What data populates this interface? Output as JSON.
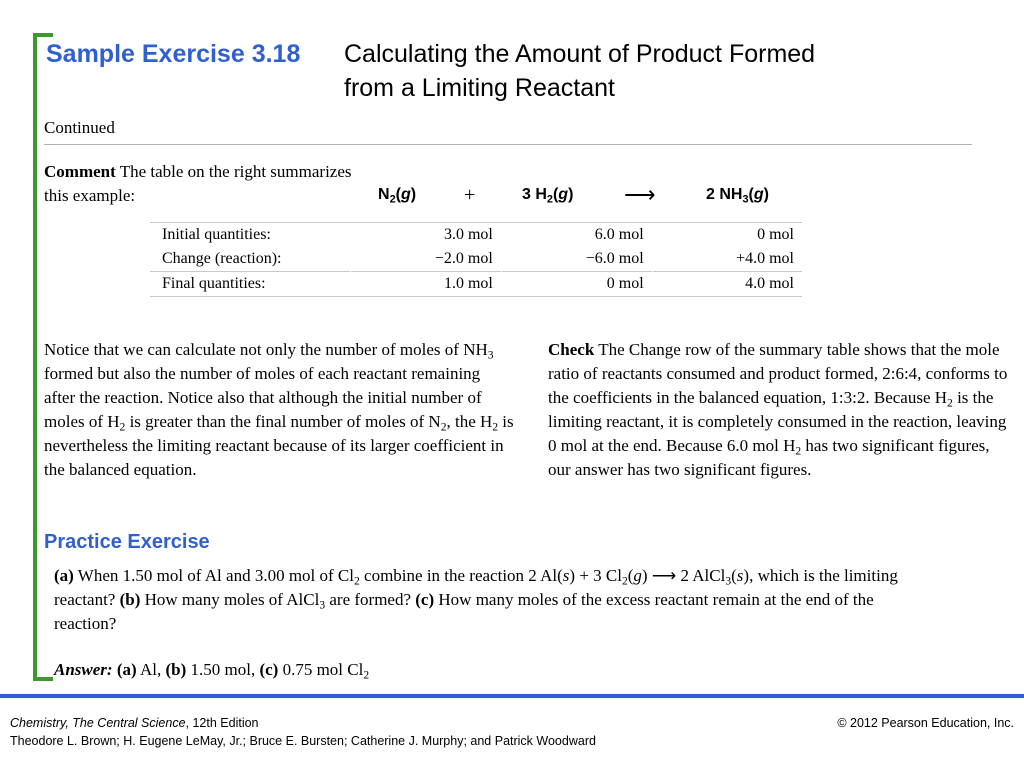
{
  "title": {
    "exercise": "Sample Exercise 3.18",
    "line1": "Calculating the Amount of Product Formed",
    "line2": "from a Limiting Reactant"
  },
  "continued": "Continued",
  "comment": {
    "label": "Comment",
    "text_line1": " The table on the right summarizes",
    "text_line2": "this example:"
  },
  "equation": {
    "reactant1_coef": "",
    "reactant1": "N",
    "reactant1_sub": "2",
    "reactant1_state": "g",
    "plus": "+",
    "reactant2_coef": "3 H",
    "reactant2_sub": "2",
    "reactant2_state": "g",
    "arrow": "⟶",
    "product_coef": "2 NH",
    "product_sub": "3",
    "product_state": "g"
  },
  "table": {
    "rows": [
      {
        "label": "Initial quantities:",
        "n2": "3.0 mol",
        "h2": "6.0 mol",
        "nh3": "0 mol"
      },
      {
        "label": "Change (reaction):",
        "n2": "−2.0 mol",
        "h2": "−6.0 mol",
        "nh3": "+4.0 mol"
      },
      {
        "label": "Final quantities:",
        "n2": "1.0 mol",
        "h2": "0 mol",
        "nh3": "4.0 mol"
      }
    ]
  },
  "notice": {
    "t1": "Notice that we can calculate not only the number of moles of NH",
    "s1": "3",
    "t2": " formed but also the number of moles of each reactant remaining after the reaction. Notice also that although the initial number of moles of H",
    "s2": "2",
    "t3": " is greater than the final number of moles of N",
    "s3": "2",
    "t4": ", the H",
    "s4": "2",
    "t5": " is nevertheless the limiting reactant because of its larger coefficient in the balanced equation."
  },
  "check": {
    "label": "Check",
    "t1": " The Change row of the summary table shows that the mole ratio of reactants consumed and product formed, 2:6:4, conforms to the coefficients in the balanced equation, 1:3:2. Because H",
    "s1": "2",
    "t2": " is the limiting reactant, it is completely consumed in the reaction, leaving 0 mol at the end. Because 6.0 mol H",
    "s2": "2",
    "t3": " has two significant figures, our answer has two significant figures."
  },
  "practice": {
    "title": "Practice Exercise",
    "a_label": "(a)",
    "t1": " When 1.50 mol of Al and 3.00 mol of Cl",
    "s1": "2",
    "t2": " combine in the reaction 2 Al(",
    "st1": "s",
    "t3": ") + 3 Cl",
    "s2": "2",
    "t4": "(",
    "st2": "g",
    "t5": ")",
    "arrow": " ⟶ ",
    "t6": "2 AlCl",
    "s3": "3",
    "t7": "(",
    "st3": "s",
    "t8": "), which is the limiting reactant? ",
    "b_label": "(b)",
    "t9": " How many moles of AlCl",
    "s4": "3",
    "t10": " are formed? ",
    "c_label": "(c)",
    "t11": " How many moles of the excess reactant remain at the end of the reaction?"
  },
  "answer": {
    "label": "Answer:",
    "a_label": "(a)",
    "a_val": " Al, ",
    "b_label": "(b)",
    "b_val": " 1.50 mol, ",
    "c_label": "(c)",
    "c_val": " 0.75 mol Cl",
    "c_sub": "2"
  },
  "footer": {
    "book": "Chemistry, The Central Science",
    "edition": ", 12th Edition",
    "authors": "Theodore L. Brown; H. Eugene LeMay, Jr.; Bruce E. Bursten; Catherine J. Murphy; and Patrick Woodward",
    "copyright": "© 2012 Pearson Education, Inc."
  },
  "colors": {
    "title_blue": "#2f5fd0",
    "bracket_green": "#3a9a2a",
    "footer_rule": "#2f5fd0"
  }
}
